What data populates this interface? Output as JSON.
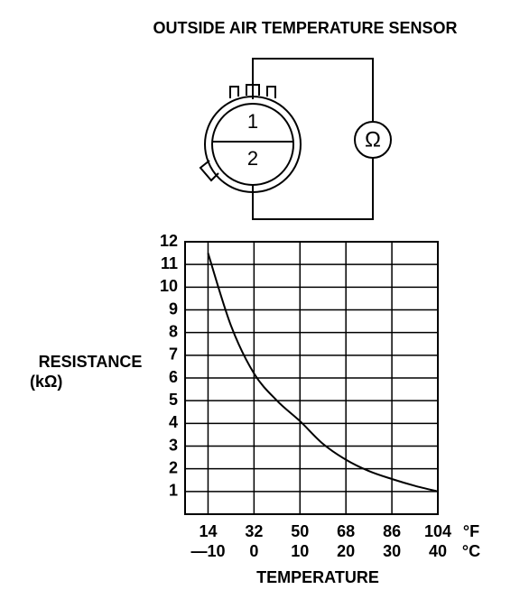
{
  "chart_data": {
    "type": "line",
    "title": "OUTSIDE AIR TEMPERATURE SENSOR",
    "x_label": "TEMPERATURE",
    "y_label": "RESISTANCE",
    "y_unit": "(kΩ)",
    "x": [
      -10,
      -5,
      0,
      5,
      10,
      15,
      20,
      25,
      30,
      35,
      40
    ],
    "values": [
      11.5,
      8.3,
      6.2,
      5.0,
      4.1,
      3.1,
      2.4,
      1.9,
      1.55,
      1.25,
      1.0
    ],
    "color": "#000000",
    "xlim": [
      -15,
      40
    ],
    "ylim": [
      0,
      12
    ],
    "xticks": [
      {
        "value": -10,
        "label": "—10"
      },
      0,
      10,
      20,
      30,
      40
    ],
    "x_secondary_labels": [
      14,
      32,
      50,
      68,
      86,
      104
    ],
    "x_units": [
      "°F",
      "°C"
    ],
    "yticks": [
      1,
      2,
      3,
      4,
      5,
      6,
      7,
      8,
      9,
      10,
      11,
      12
    ],
    "grid": true
  },
  "diagram": {
    "pins": [
      "1",
      "2"
    ],
    "meter": "Ω"
  }
}
